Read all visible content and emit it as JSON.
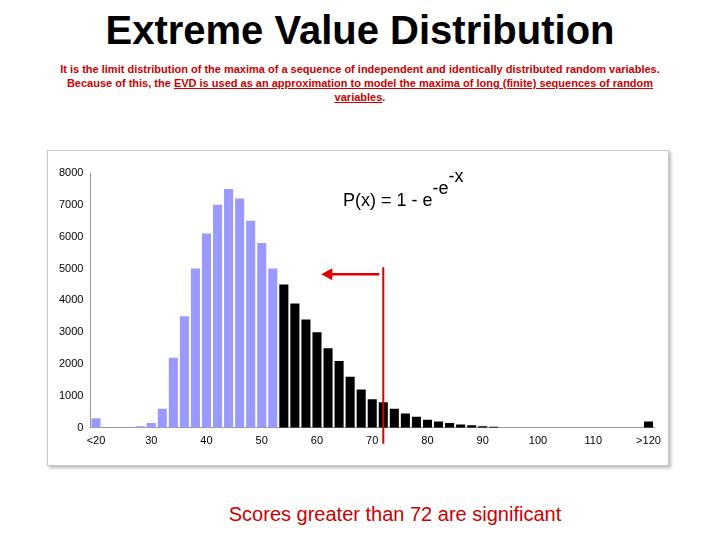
{
  "chart_data": {
    "type": "bar",
    "title": "Extreme Value Distribution",
    "subtitle": [
      "It is the limit distribution of the maxima of a sequence of independent and identically distributed random variables. Because of this, the ",
      "EVD is used as an approximation to model the maxima of long (finite) sequences of random variables",
      "."
    ],
    "formula": [
      "P(x) = 1 - e",
      "-e",
      "-x"
    ],
    "note": "Scores greater than 72 are significant",
    "threshold": 72,
    "x": [
      20,
      22,
      24,
      26,
      28,
      30,
      32,
      34,
      36,
      38,
      40,
      42,
      44,
      46,
      48,
      50,
      52,
      54,
      56,
      58,
      60,
      62,
      64,
      66,
      68,
      70,
      72,
      74,
      76,
      78,
      80,
      82,
      84,
      86,
      88,
      90,
      92,
      94,
      96,
      98,
      100,
      102,
      104,
      106,
      108,
      110,
      112,
      114,
      116,
      118,
      120
    ],
    "values": [
      300,
      0,
      0,
      0,
      50,
      150,
      600,
      2200,
      3500,
      5000,
      6100,
      7000,
      7500,
      7200,
      6500,
      5800,
      5000,
      4500,
      3900,
      3400,
      3000,
      2500,
      2100,
      1600,
      1200,
      900,
      800,
      600,
      450,
      350,
      250,
      200,
      150,
      100,
      80,
      50,
      30,
      0,
      0,
      0,
      0,
      0,
      0,
      0,
      0,
      0,
      0,
      0,
      0,
      0,
      200
    ],
    "colors": [
      "#9999ff",
      "#9999ff",
      "#9999ff",
      "#9999ff",
      "#9999ff",
      "#9999ff",
      "#9999ff",
      "#9999ff",
      "#9999ff",
      "#9999ff",
      "#9999ff",
      "#9999ff",
      "#9999ff",
      "#9999ff",
      "#9999ff",
      "#9999ff",
      "#9999ff",
      "#000000",
      "#000000",
      "#000000",
      "#000000",
      "#000000",
      "#000000",
      "#000000",
      "#000000",
      "#000000",
      "#000000",
      "#000000",
      "#000000",
      "#000000",
      "#000000",
      "#000000",
      "#000000",
      "#000000",
      "#000000",
      "#000000",
      "#000000",
      "#000000",
      "#000000",
      "#000000",
      "#000000",
      "#000000",
      "#000000",
      "#000000",
      "#000000",
      "#000000",
      "#000000",
      "#000000",
      "#000000",
      "#000000",
      "#000000"
    ],
    "xlim": [
      19,
      121
    ],
    "xticks": [
      {
        "value": 20,
        "label": "<20"
      },
      30,
      40,
      50,
      60,
      70,
      80,
      90,
      100,
      110,
      {
        "value": 120,
        "label": ">120"
      }
    ],
    "ylim": [
      0,
      8000
    ],
    "yticks": [
      0,
      1000,
      2000,
      3000,
      4000,
      5000,
      6000,
      7000,
      8000
    ],
    "grid": false
  }
}
